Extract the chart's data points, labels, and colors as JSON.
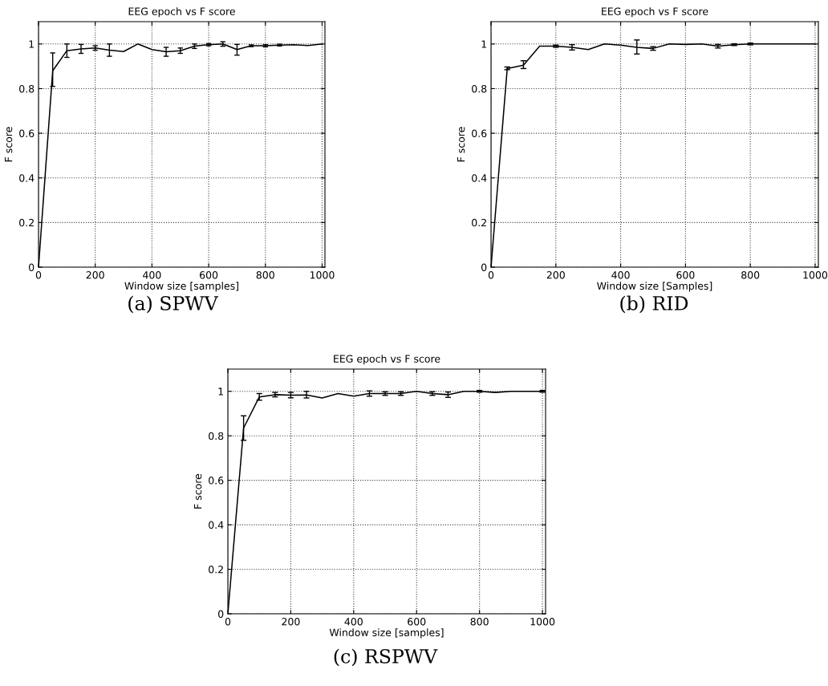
{
  "chart_data": [
    {
      "type": "line",
      "title": "EEG epoch vs F score",
      "xlabel": "Window size [samples]",
      "ylabel": "F score",
      "annotations": [
        "(a) SPWV"
      ],
      "x": [
        0,
        50,
        100,
        150,
        200,
        250,
        300,
        350,
        400,
        450,
        500,
        550,
        600,
        650,
        700,
        750,
        800,
        850,
        900,
        950,
        1000
      ],
      "series": [
        {
          "color": "#000000",
          "values": [
            0,
            0.88,
            0.97,
            0.978,
            0.982,
            0.972,
            0.966,
            1.0,
            0.975,
            0.965,
            0.97,
            0.99,
            0.997,
            1.0,
            0.975,
            0.992,
            0.992,
            0.995,
            0.997,
            0.993,
            1.0
          ],
          "errors": [
            null,
            [
              0.81,
              0.96
            ],
            [
              0.94,
              1.0
            ],
            0.02,
            0.01,
            [
              0.945,
              1.0
            ],
            null,
            null,
            null,
            [
              0.945,
              0.985
            ],
            0.012,
            0.01,
            0.005,
            0.01,
            [
              0.95,
              0.998
            ],
            0.004,
            0.005,
            0.004,
            null,
            null,
            null
          ]
        }
      ],
      "xlim": [
        0,
        1010
      ],
      "ylim": [
        0,
        1.1
      ],
      "xticks": [
        0,
        200,
        400,
        600,
        800,
        1000
      ],
      "yticks": [
        0,
        0.2,
        0.4,
        0.6,
        0.8,
        1
      ],
      "grid": true,
      "line_style": "solid",
      "marker": "none"
    },
    {
      "type": "line",
      "title": "EEG epoch vs F score",
      "xlabel": "Window size [Samples]",
      "ylabel": "F score",
      "annotations": [
        "(b) RID"
      ],
      "x": [
        0,
        50,
        100,
        150,
        200,
        250,
        300,
        350,
        400,
        450,
        500,
        550,
        600,
        650,
        700,
        750,
        800,
        850,
        900,
        950,
        1000
      ],
      "series": [
        {
          "color": "#000000",
          "values": [
            0,
            0.89,
            0.905,
            0.99,
            0.99,
            0.985,
            0.975,
            1.0,
            0.995,
            0.985,
            0.98,
            1.0,
            0.998,
            1.0,
            0.99,
            0.997,
            1.0,
            1.0,
            1.0,
            1.0,
            1.0
          ],
          "errors": [
            null,
            [
              0.885,
              0.897
            ],
            [
              0.89,
              0.925
            ],
            null,
            0.005,
            0.012,
            null,
            null,
            null,
            [
              0.955,
              1.018
            ],
            0.008,
            null,
            null,
            null,
            0.008,
            0.004,
            0.004,
            null,
            null,
            null,
            null
          ]
        }
      ],
      "xlim": [
        0,
        1010
      ],
      "ylim": [
        0,
        1.1
      ],
      "xticks": [
        0,
        200,
        400,
        600,
        800,
        1000
      ],
      "yticks": [
        0,
        0.2,
        0.4,
        0.6,
        0.8,
        1
      ],
      "grid": true,
      "line_style": "solid",
      "marker": "none"
    },
    {
      "type": "line",
      "title": "EEG epoch vs F score",
      "xlabel": "Window size [samples]",
      "ylabel": "F score",
      "annotations": [
        "(c) RSPWV"
      ],
      "x": [
        0,
        50,
        100,
        150,
        200,
        250,
        300,
        350,
        400,
        450,
        500,
        550,
        600,
        650,
        700,
        750,
        800,
        850,
        900,
        950,
        1000
      ],
      "series": [
        {
          "color": "#000000",
          "values": [
            0,
            0.835,
            0.975,
            0.985,
            0.983,
            0.984,
            0.97,
            0.99,
            0.978,
            0.99,
            0.99,
            0.99,
            1.0,
            0.99,
            0.985,
            1.0,
            1.0,
            0.995,
            1.0,
            1.0,
            1.0
          ],
          "errors": [
            null,
            [
              0.78,
              0.89
            ],
            [
              0.96,
              0.99
            ],
            0.01,
            0.012,
            [
              0.97,
              1.0
            ],
            null,
            null,
            null,
            0.012,
            0.008,
            0.008,
            null,
            0.008,
            0.012,
            null,
            0.004,
            null,
            null,
            null,
            0.004
          ]
        }
      ],
      "xlim": [
        0,
        1010
      ],
      "ylim": [
        0,
        1.1
      ],
      "xticks": [
        0,
        200,
        400,
        600,
        800,
        1000
      ],
      "yticks": [
        0,
        0.2,
        0.4,
        0.6,
        0.8,
        1
      ],
      "grid": true,
      "line_style": "solid",
      "marker": "none"
    }
  ]
}
